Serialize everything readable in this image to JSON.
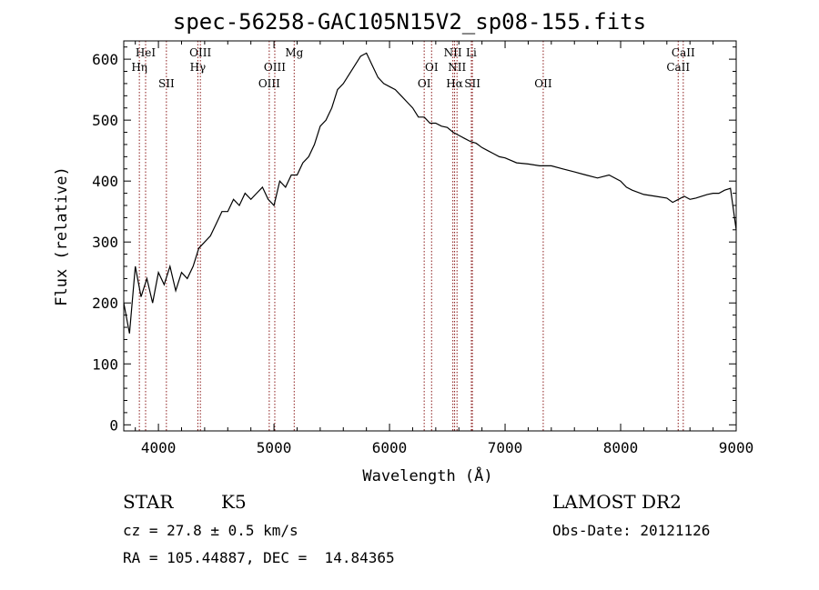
{
  "chart_data": {
    "type": "line",
    "title": "spec-56258-GAC105N15V2_sp08-155.fits",
    "xlabel": "Wavelength (Å)",
    "ylabel": "Flux (relative)",
    "xlim": [
      3700,
      9000
    ],
    "ylim": [
      -10,
      630
    ],
    "xticks": [
      "4000",
      "5000",
      "6000",
      "7000",
      "8000",
      "9000"
    ],
    "yticks": [
      "0",
      "100",
      "200",
      "300",
      "400",
      "500",
      "600"
    ],
    "series": [
      {
        "x": [
          3700,
          3750,
          3800,
          3850,
          3900,
          3950,
          4000,
          4050,
          4100,
          4150,
          4200,
          4250,
          4300,
          4350,
          4400,
          4450,
          4500,
          4550,
          4600,
          4650,
          4700,
          4750,
          4800,
          4850,
          4900,
          4950,
          5000,
          5050,
          5100,
          5150,
          5200,
          5250,
          5300,
          5350,
          5400,
          5450,
          5500,
          5550,
          5600,
          5650,
          5700,
          5750,
          5800,
          5850,
          5900,
          5950,
          6000,
          6050,
          6100,
          6150,
          6200,
          6250,
          6300,
          6350,
          6400,
          6450,
          6500,
          6550,
          6600,
          6650,
          6700,
          6750,
          6800,
          6850,
          6900,
          6950,
          7000,
          7100,
          7200,
          7300,
          7400,
          7500,
          7600,
          7700,
          7800,
          7900,
          8000,
          8050,
          8100,
          8200,
          8300,
          8400,
          8450,
          8500,
          8550,
          8600,
          8650,
          8700,
          8750,
          8800,
          8850,
          8900,
          8950,
          9000
        ],
        "y": [
          200,
          150,
          260,
          210,
          240,
          200,
          250,
          230,
          260,
          220,
          250,
          240,
          260,
          290,
          300,
          310,
          330,
          350,
          350,
          370,
          360,
          380,
          370,
          380,
          390,
          370,
          360,
          400,
          390,
          410,
          410,
          430,
          440,
          460,
          490,
          500,
          520,
          550,
          560,
          575,
          590,
          605,
          610,
          590,
          570,
          560,
          555,
          550,
          540,
          530,
          520,
          505,
          505,
          495,
          495,
          490,
          488,
          480,
          475,
          470,
          465,
          462,
          455,
          450,
          445,
          440,
          438,
          430,
          428,
          425,
          425,
          420,
          415,
          410,
          405,
          410,
          400,
          390,
          385,
          378,
          375,
          372,
          365,
          370,
          375,
          370,
          372,
          375,
          378,
          380,
          380,
          385,
          388,
          320
        ]
      }
    ],
    "lines": [
      {
        "label": "HeI",
        "x": 3889,
        "row": 1
      },
      {
        "label": "Hη",
        "x": 3835,
        "row": 2
      },
      {
        "label": "SII",
        "x": 4069,
        "row": 3
      },
      {
        "label": "OIII",
        "x": 4363,
        "row": 1
      },
      {
        "label": "Hγ",
        "x": 4341,
        "row": 2
      },
      {
        "label": "OIII",
        "x": 5007,
        "row": 2
      },
      {
        "label": "OIII",
        "x": 4959,
        "row": 3
      },
      {
        "label": "Mg",
        "x": 5175,
        "row": 1
      },
      {
        "label": "OI",
        "x": 6364,
        "row": 2
      },
      {
        "label": "OI",
        "x": 6300,
        "row": 3
      },
      {
        "label": "NII",
        "x": 6548,
        "row": 1
      },
      {
        "label": "Li",
        "x": 6708,
        "row": 1
      },
      {
        "label": "NII",
        "x": 6584,
        "row": 2
      },
      {
        "label": "Hα",
        "x": 6563,
        "row": 3
      },
      {
        "label": "SII",
        "x": 6717,
        "row": 3
      },
      {
        "label": "OII",
        "x": 7330,
        "row": 3
      },
      {
        "label": "CaII",
        "x": 8542,
        "row": 1
      },
      {
        "label": "CaII",
        "x": 8498,
        "row": 2
      }
    ]
  },
  "info": {
    "class": "STAR",
    "subclass": "K5",
    "survey": "LAMOST DR2",
    "cz": "cz = 27.8 ± 0.5 km/s",
    "obs_date": "Obs-Date: 20121126",
    "coords": "RA = 105.44887, DEC =  14.84365"
  },
  "colors": {
    "line_marker": "#8b1a1a",
    "spectrum": "#000000"
  }
}
